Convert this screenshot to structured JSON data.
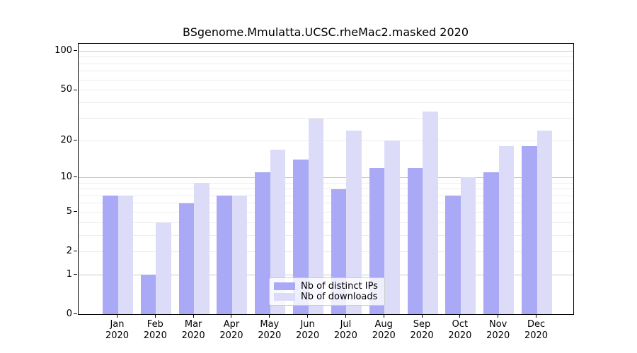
{
  "title": "BSgenome.Mmulatta.UCSC.rheMac2.masked 2020",
  "colors": {
    "distinct_ips": "#a9a9f6",
    "downloads": "#dcdcf9",
    "grid_major": "#c8c8c8",
    "grid_minor": "#ececec"
  },
  "chart_data": {
    "type": "bar",
    "title": "BSgenome.Mmulatta.UCSC.rheMac2.masked 2020",
    "categories": [
      "Jan",
      "Feb",
      "Mar",
      "Apr",
      "May",
      "Jun",
      "Jul",
      "Aug",
      "Sep",
      "Oct",
      "Nov",
      "Dec"
    ],
    "year_label": "2020",
    "series": [
      {
        "name": "Nb of distinct IPs",
        "color": "#a9a9f6",
        "values": [
          7,
          1,
          6,
          7,
          11,
          14,
          8,
          12,
          12,
          7,
          11,
          18
        ]
      },
      {
        "name": "Nb of downloads",
        "color": "#dcdcf9",
        "values": [
          7,
          4,
          9,
          7,
          17,
          30,
          24,
          20,
          34,
          10,
          18,
          24
        ]
      }
    ],
    "xlabel": "",
    "ylabel": "",
    "yscale": "log1p",
    "yticks": [
      100,
      50,
      20,
      10,
      5,
      2,
      1,
      0
    ],
    "minor_gridlines": [
      2,
      3,
      4,
      5,
      6,
      7,
      8,
      9,
      20,
      30,
      40,
      50,
      60,
      70,
      80,
      90
    ],
    "major_gridlines": [
      1,
      10,
      100
    ],
    "ylim": [
      0,
      114
    ],
    "grid": true,
    "legend_position": "lower center"
  }
}
